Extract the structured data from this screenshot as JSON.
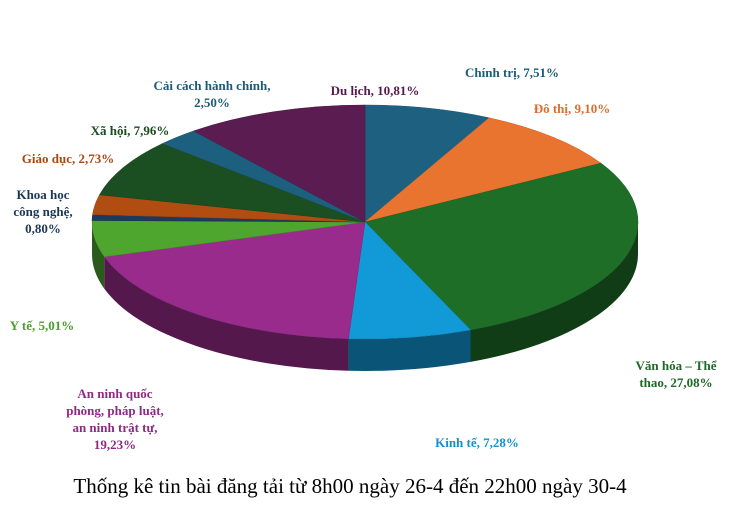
{
  "chart_data": {
    "type": "pie3d",
    "title": "Thống kê tin bài đăng tải từ 8h00 ngày 26-4 đến 22h00 ngày 30-4",
    "values": [
      7.51,
      9.1,
      27.08,
      7.28,
      19.23,
      5.01,
      0.8,
      2.73,
      7.96,
      2.5,
      10.81
    ],
    "value_labels": [
      [
        "Chính trị, 7,51%"
      ],
      [
        "Đô thị, 9,10%"
      ],
      [
        "Văn hóa – Thể",
        "thao, 27,08%"
      ],
      [
        "Kinh tế, 7,28%"
      ],
      [
        "An ninh quốc",
        "phòng, pháp luật,",
        "an ninh trật tự,",
        "19,23%"
      ],
      [
        "Y tế, 5,01%"
      ],
      [
        "Khoa học",
        "công nghệ,",
        "0,80%"
      ],
      [
        "Giáo dục, 2,73%"
      ],
      [
        "Xã hội, 7,96%"
      ],
      [
        "Cải cách hành chính,",
        "2,50%"
      ],
      [
        "Du lịch, 10,81%"
      ]
    ],
    "colors": [
      "#1d6080",
      "#e8742f",
      "#1f6e28",
      "#129ad8",
      "#982b8c",
      "#4ea62f",
      "#1b3a5c",
      "#b24d12",
      "#1b4e21",
      "#1c5f7e",
      "#5b1c52"
    ]
  }
}
